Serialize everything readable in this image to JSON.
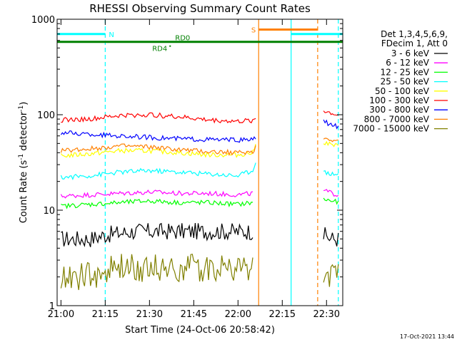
{
  "chart_data": {
    "type": "line",
    "title": "RHESSI Observing Summary Count Rates",
    "xlabel": "Start Time (24-Oct-06 20:58:42)",
    "ylabel_main": "Count Rate (s",
    "ylabel_sup1": "-1",
    "ylabel_mid": " detector",
    "ylabel_sup2": "-1",
    "ylabel_end": ")",
    "yscale": "log",
    "xlim": [
      "20:58:42",
      "22:35:30"
    ],
    "ylim": [
      1,
      1000
    ],
    "x_ticks": [
      "21:00",
      "21:15",
      "21:30",
      "21:45",
      "22:00",
      "22:15",
      "22:30"
    ],
    "y_ticks": [
      "1",
      "10",
      "100",
      "1000"
    ],
    "legend_title_1": "Det 1,3,4,5,6,9,",
    "legend_title_2": "FDecim 1, Att 0",
    "legend_position": "top-right",
    "series": [
      {
        "name": "3 - 6 keV",
        "color": "#000000",
        "segments": [
          {
            "x": [
              "21:00",
              "21:10",
              "21:15",
              "21:25",
              "21:30",
              "21:40",
              "21:45",
              "21:55",
              "22:05"
            ],
            "y": [
              5,
              5,
              5.5,
              6,
              6,
              6,
              6,
              6,
              6
            ]
          },
          {
            "x": [
              "22:29",
              "22:32",
              "22:34"
            ],
            "y": [
              5.5,
              5,
              5
            ]
          }
        ]
      },
      {
        "name": "6 - 12 keV",
        "color": "#ff00ff",
        "segments": [
          {
            "x": [
              "21:00",
              "21:10",
              "21:20",
              "21:30",
              "21:40",
              "21:50",
              "22:00",
              "22:05"
            ],
            "y": [
              14,
              14.5,
              15,
              15.5,
              15,
              15,
              14.5,
              15
            ]
          },
          {
            "x": [
              "22:29",
              "22:32",
              "22:34"
            ],
            "y": [
              16,
              15,
              14.5
            ]
          }
        ]
      },
      {
        "name": "12 - 25 keV",
        "color": "#00ff00",
        "segments": [
          {
            "x": [
              "21:00",
              "21:10",
              "21:20",
              "21:30",
              "21:40",
              "21:50",
              "22:00",
              "22:05"
            ],
            "y": [
              11,
              11.5,
              12,
              12.5,
              12,
              12,
              11.5,
              12
            ]
          },
          {
            "x": [
              "22:29",
              "22:32",
              "22:34"
            ],
            "y": [
              13,
              12.5,
              12
            ]
          }
        ]
      },
      {
        "name": "25 - 50 keV",
        "color": "#00ffff",
        "segments": [
          {
            "x": [
              "21:00",
              "21:10",
              "21:20",
              "21:30",
              "21:40",
              "21:50",
              "22:00",
              "22:05",
              "22:06"
            ],
            "y": [
              22,
              23,
              25,
              26,
              25,
              24,
              23,
              26,
              33
            ]
          },
          {
            "x": [
              "22:29",
              "22:32",
              "22:34"
            ],
            "y": [
              25,
              24,
              24
            ]
          }
        ]
      },
      {
        "name": "50 - 100 keV",
        "color": "#ffff00",
        "segments": [
          {
            "x": [
              "21:00",
              "21:10",
              "21:20",
              "21:30",
              "21:40",
              "21:50",
              "22:00",
              "22:05",
              "22:06"
            ],
            "y": [
              37,
              39,
              42,
              42,
              40,
              38,
              38,
              40,
              48
            ]
          },
          {
            "x": [
              "22:29",
              "22:32",
              "22:34"
            ],
            "y": [
              52,
              48,
              47
            ]
          }
        ]
      },
      {
        "name": "100 - 300 keV",
        "color": "#ff0000",
        "segments": [
          {
            "x": [
              "21:00",
              "21:10",
              "21:20",
              "21:30",
              "21:40",
              "21:50",
              "22:00",
              "22:05",
              "22:06"
            ],
            "y": [
              88,
              90,
              98,
              100,
              95,
              88,
              85,
              87,
              92
            ]
          },
          {
            "x": [
              "22:29",
              "22:32",
              "22:34"
            ],
            "y": [
              110,
              103,
              98
            ]
          }
        ]
      },
      {
        "name": "300 - 800 keV",
        "color": "#0000ff",
        "segments": [
          {
            "x": [
              "21:00",
              "21:10",
              "21:20",
              "21:30",
              "21:40",
              "21:50",
              "22:00",
              "22:05",
              "22:06"
            ],
            "y": [
              65,
              62,
              60,
              58,
              56,
              55,
              54,
              55,
              58
            ]
          },
          {
            "x": [
              "22:29",
              "22:32",
              "22:34"
            ],
            "y": [
              85,
              78,
              75
            ]
          }
        ]
      },
      {
        "name": "800 - 7000 keV",
        "color": "#ff8000",
        "segments": [
          {
            "x": [
              "21:00",
              "21:10",
              "21:20",
              "21:30",
              "21:40",
              "21:50",
              "22:00",
              "22:05",
              "22:06"
            ],
            "y": [
              42,
              44,
              47,
              46,
              43,
              41,
              40,
              41,
              46
            ]
          },
          {
            "x": [
              "22:29",
              "22:32",
              "22:34"
            ],
            "y": [
              57,
              55,
              53
            ]
          }
        ]
      },
      {
        "name": "7000 - 15000 keV",
        "color": "#808000",
        "segments": [
          {
            "x": [
              "21:00",
              "21:10",
              "21:20",
              "21:30",
              "21:40",
              "21:50",
              "22:00",
              "22:05"
            ],
            "y": [
              2,
              2,
              2.5,
              2.5,
              2.5,
              2.5,
              2.5,
              2.5
            ]
          },
          {
            "x": [
              "22:29",
              "22:32",
              "22:34"
            ],
            "y": [
              2,
              2,
              2
            ]
          }
        ]
      }
    ],
    "flags": [
      {
        "label": "N",
        "color": "#00ffff",
        "level": 700,
        "x": [
          "20:58:42",
          "21:15"
        ]
      },
      {
        "label": "N",
        "color": "#00ffff",
        "level": 700,
        "x": [
          "22:18",
          "22:35:30"
        ]
      },
      {
        "label": "S",
        "color": "#ff8000",
        "level": 780,
        "x": [
          "22:07",
          "22:27"
        ]
      },
      {
        "label": "RD0",
        "color": "#008000",
        "level": 580,
        "x": [
          "20:58:42",
          "22:35:30"
        ]
      },
      {
        "label": "RD4",
        "color": "#008000",
        "level": 580,
        "x": [
          "21:37",
          "21:37"
        ]
      }
    ],
    "vlines": [
      {
        "x": "21:15",
        "color": "#00ffff",
        "style": "dashed"
      },
      {
        "x": "22:07",
        "color": "#ff8000",
        "style": "solid"
      },
      {
        "x": "22:18",
        "color": "#00ffff",
        "style": "solid"
      },
      {
        "x": "22:27",
        "color": "#ff8000",
        "style": "dashed"
      },
      {
        "x": "22:34",
        "color": "#00ffff",
        "style": "dashed"
      }
    ],
    "timestamp": "17-Oct-2021 13:44"
  }
}
